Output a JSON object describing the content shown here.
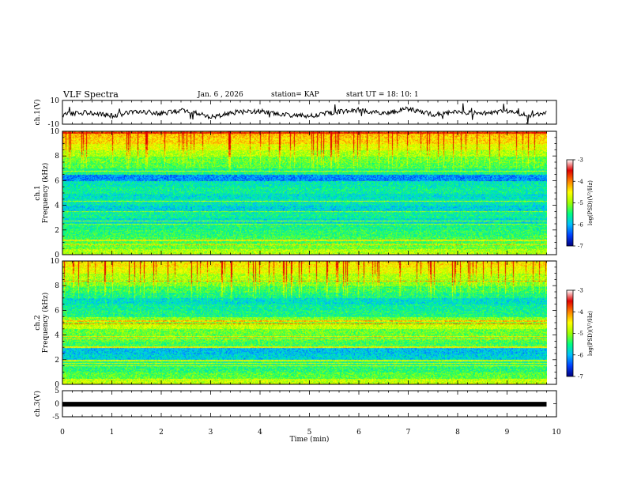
{
  "header": {
    "title": "VLF Spectra",
    "date": "Jan. 6 , 2026",
    "station": "station= KAP",
    "start_ut": "start UT =   18: 10: 1"
  },
  "colorbar": {
    "label": "log(PSD)(V²/Hz)",
    "ticks": [
      "-3",
      "-4",
      "-5",
      "-6",
      "-7"
    ],
    "range": [
      -7,
      -3
    ],
    "colors": [
      "#000080",
      "#0040ff",
      "#00c0ff",
      "#00ff80",
      "#a0ff00",
      "#ffff00",
      "#ff8000",
      "#e00000",
      "#ffffff"
    ]
  },
  "chart_data": [
    {
      "type": "line",
      "name": "ch1-waveform",
      "ylabel": "ch.1(V)",
      "ylim": [
        -10,
        10
      ],
      "yticks": [
        "10",
        "-10"
      ],
      "x": [
        0,
        0.5,
        1,
        1.5,
        2,
        2.5,
        3,
        3.5,
        4,
        4.5,
        5,
        5.5,
        6,
        6.5,
        7,
        7.5,
        8,
        8.5,
        9,
        9.5,
        9.8
      ],
      "y": [
        -2,
        0,
        -3,
        1,
        -1,
        2,
        -4,
        0,
        1,
        -2,
        -3,
        0,
        2,
        -1,
        3,
        -2,
        0,
        -1,
        1,
        -3,
        0
      ]
    },
    {
      "type": "heatmap",
      "name": "ch1-spectrogram",
      "ylabel": "ch.1",
      "ylabel2": "Frequency (kHz)",
      "ylim": [
        0,
        10
      ],
      "yticks": [
        "0",
        "2",
        "4",
        "6",
        "8",
        "10"
      ],
      "x_range_min": [
        0,
        9.8
      ],
      "freq_kHz": [
        0.25,
        0.75,
        1.25,
        1.75,
        2.25,
        2.75,
        3.25,
        3.75,
        4.25,
        4.75,
        5.25,
        5.75,
        6.25,
        6.75,
        7.25,
        7.75,
        8.25,
        8.75,
        9.25,
        9.75
      ],
      "mean_log_psd": [
        -4.6,
        -4.9,
        -5.1,
        -5.2,
        -5.3,
        -5.6,
        -5.4,
        -5.7,
        -5.5,
        -5.6,
        -5.4,
        -5.5,
        -6.1,
        -5.3,
        -5.0,
        -4.9,
        -4.6,
        -4.3,
        -4.0,
        -3.9
      ]
    },
    {
      "type": "heatmap",
      "name": "ch2-spectrogram",
      "ylabel": "ch.2",
      "ylabel2": "Frequency (kHz)",
      "ylim": [
        0,
        10
      ],
      "yticks": [
        "0",
        "2",
        "4",
        "6",
        "8",
        "10"
      ],
      "x_range_min": [
        0,
        9.8
      ],
      "freq_kHz": [
        0.25,
        0.75,
        1.25,
        1.75,
        2.25,
        2.75,
        3.25,
        3.75,
        4.25,
        4.75,
        5.25,
        5.75,
        6.25,
        6.75,
        7.25,
        7.75,
        8.25,
        8.75,
        9.25,
        9.75
      ],
      "mean_log_psd": [
        -4.5,
        -5.0,
        -5.2,
        -5.3,
        -5.7,
        -5.8,
        -5.1,
        -5.0,
        -4.9,
        -4.5,
        -4.8,
        -5.3,
        -5.4,
        -5.6,
        -5.3,
        -5.1,
        -4.8,
        -4.6,
        -4.3,
        -4.1
      ]
    },
    {
      "type": "line",
      "name": "ch3-waveform",
      "ylabel": "ch.3(V)",
      "ylim": [
        -5,
        5
      ],
      "yticks": [
        "5",
        "0",
        "-5"
      ],
      "x": [
        0,
        9.8
      ],
      "y": [
        -0.2,
        -0.2
      ]
    }
  ],
  "xaxis": {
    "label": "Time  (min)",
    "ticks": [
      "0",
      "1",
      "2",
      "3",
      "4",
      "5",
      "6",
      "7",
      "8",
      "9",
      "10"
    ],
    "range": [
      0,
      10
    ]
  }
}
